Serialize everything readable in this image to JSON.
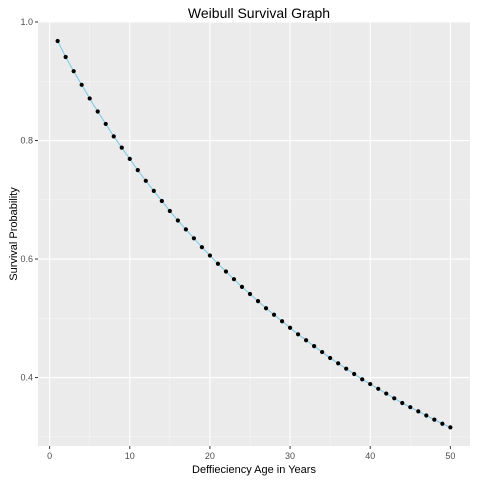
{
  "chart_data": {
    "type": "line",
    "title": "Weibull Survival Graph",
    "xlabel": "Deffieciency Age in Years",
    "ylabel": "Survival Probability",
    "xlim": [
      -1.45,
      52.45
    ],
    "ylim": [
      0.2845,
      1.0
    ],
    "x_ticks": [
      0,
      10,
      20,
      30,
      40,
      50
    ],
    "y_ticks": [
      0.4,
      0.6,
      0.8,
      1.0
    ],
    "x_tick_labels": [
      "0",
      "10",
      "20",
      "30",
      "40",
      "50"
    ],
    "y_tick_labels": [
      "0.4",
      "0.6",
      "0.8",
      "1.0"
    ],
    "grid": true,
    "series": [
      {
        "line_color": "#7ecbe8",
        "point_color": "#000000",
        "x": [
          1,
          2,
          3,
          4,
          5,
          6,
          7,
          8,
          9,
          10,
          11,
          12,
          13,
          14,
          15,
          16,
          17,
          18,
          19,
          20,
          21,
          22,
          23,
          24,
          25,
          26,
          27,
          28,
          29,
          30,
          31,
          32,
          33,
          34,
          35,
          36,
          37,
          38,
          39,
          40,
          41,
          42,
          43,
          44,
          45,
          46,
          47,
          48,
          49,
          50
        ],
        "values": [
          0.968,
          0.941,
          0.917,
          0.894,
          0.871,
          0.849,
          0.828,
          0.807,
          0.788,
          0.769,
          0.75,
          0.732,
          0.715,
          0.698,
          0.681,
          0.665,
          0.65,
          0.635,
          0.62,
          0.606,
          0.592,
          0.579,
          0.566,
          0.553,
          0.541,
          0.529,
          0.517,
          0.506,
          0.495,
          0.484,
          0.473,
          0.463,
          0.453,
          0.443,
          0.433,
          0.424,
          0.415,
          0.406,
          0.397,
          0.389,
          0.381,
          0.373,
          0.365,
          0.357,
          0.35,
          0.343,
          0.336,
          0.329,
          0.322,
          0.316
        ]
      }
    ]
  },
  "colors": {
    "panel_background": "#ebebeb",
    "grid_major": "#ffffff",
    "grid_minor": "#f5f5f5",
    "tick_color": "#333333"
  }
}
